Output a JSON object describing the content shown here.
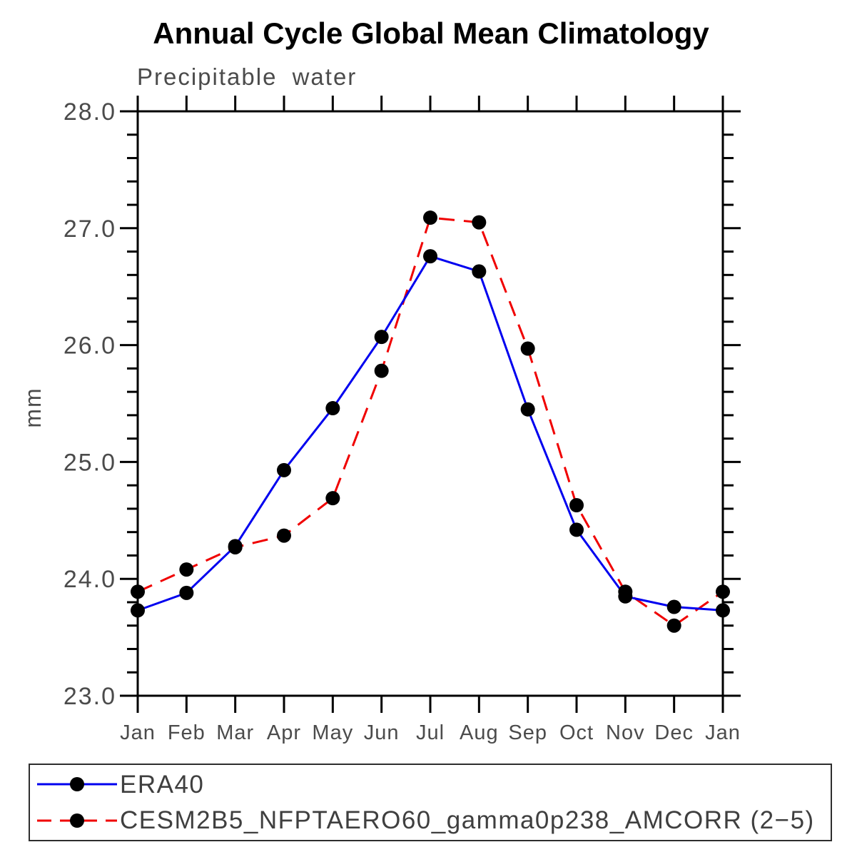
{
  "page": {
    "background": "#ffffff"
  },
  "chart_data": {
    "type": "line",
    "title": "Annual Cycle Global Mean Climatology",
    "subtitle": "Precipitable water",
    "ylabel": "mm",
    "xlabel": "",
    "ylim": [
      23.0,
      28.0
    ],
    "ytick_labels": [
      "23.0",
      "24.0",
      "25.0",
      "26.0",
      "27.0",
      "28.0"
    ],
    "minor_tick_step": 0.2,
    "grid": false,
    "legend_position": "bottom-box",
    "categories": [
      "Jan",
      "Feb",
      "Mar",
      "Apr",
      "May",
      "Jun",
      "Jul",
      "Aug",
      "Sep",
      "Oct",
      "Nov",
      "Dec",
      "Jan"
    ],
    "series": [
      {
        "name": "ERA40",
        "color": "#0000ef",
        "line_style": "solid",
        "marker": "filled-circle",
        "marker_color": "#000000",
        "values": [
          23.73,
          23.88,
          24.28,
          24.93,
          25.46,
          26.07,
          26.76,
          26.63,
          25.45,
          24.42,
          23.85,
          23.76,
          23.73
        ]
      },
      {
        "name": "CESM2B5_NFPTAERO60_gamma0p238_AMCORR (2−5)",
        "color": "#f00000",
        "line_style": "dashed",
        "marker": "filled-circle",
        "marker_color": "#000000",
        "values": [
          23.89,
          24.08,
          24.27,
          24.37,
          24.69,
          25.78,
          27.09,
          27.05,
          25.97,
          24.63,
          23.89,
          23.6,
          23.89
        ]
      }
    ],
    "axis_color": "#000000",
    "text_color": "#4b4b4b"
  }
}
